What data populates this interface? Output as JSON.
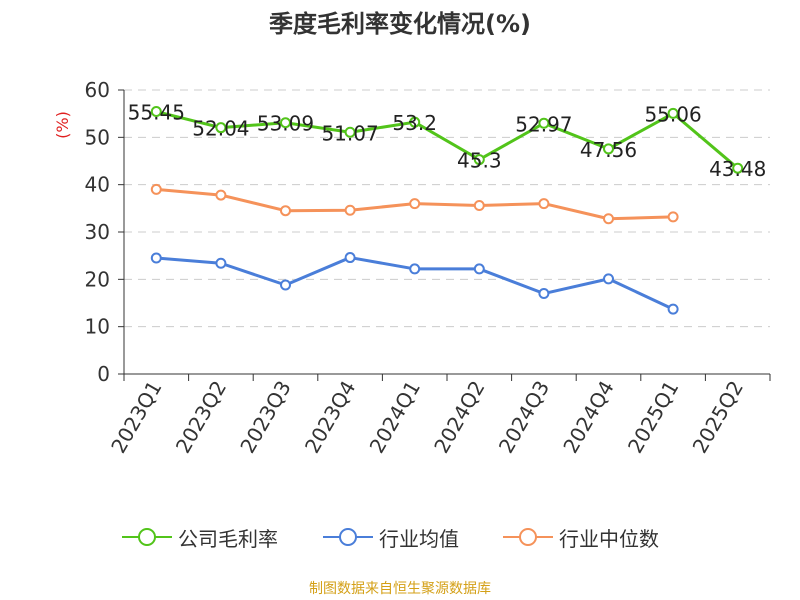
{
  "title": "季度毛利率变化情况(%)",
  "source": "制图数据来自恒生聚源数据库",
  "colors": {
    "company": "#52c41a",
    "industry_avg": "#4a7ed9",
    "industry_median": "#f5925a",
    "ylabel": "#e02020",
    "source": "#d4a017"
  },
  "chart_data": {
    "type": "line",
    "title": "季度毛利率变化情况(%)",
    "ylabel": "(%)",
    "xlabel": "",
    "ylim": [
      0,
      60
    ],
    "yticks": [
      0,
      10,
      20,
      30,
      40,
      50,
      60
    ],
    "grid": true,
    "legend_position": "bottom",
    "categories": [
      "2023Q1",
      "2023Q2",
      "2023Q3",
      "2023Q4",
      "2024Q1",
      "2024Q2",
      "2024Q3",
      "2024Q4",
      "2025Q1",
      "2025Q2"
    ],
    "series": [
      {
        "name": "公司毛利率",
        "color": "#52c41a",
        "values": [
          55.45,
          52.04,
          53.09,
          51.07,
          53.2,
          45.3,
          52.97,
          47.56,
          55.06,
          43.48
        ],
        "labels": [
          "55.45",
          "52.04",
          "53.09",
          "51.07",
          "53.2",
          "45.3",
          "52.97",
          "47.56",
          "55.06",
          "43.48"
        ]
      },
      {
        "name": "行业均值",
        "color": "#4a7ed9",
        "values": [
          24.5,
          23.4,
          18.8,
          24.6,
          22.2,
          22.2,
          17.0,
          20.1,
          13.7,
          null
        ]
      },
      {
        "name": "行业中位数",
        "color": "#f5925a",
        "values": [
          39.0,
          37.8,
          34.5,
          34.6,
          36.0,
          35.6,
          36.0,
          32.8,
          33.2,
          null
        ]
      }
    ]
  }
}
